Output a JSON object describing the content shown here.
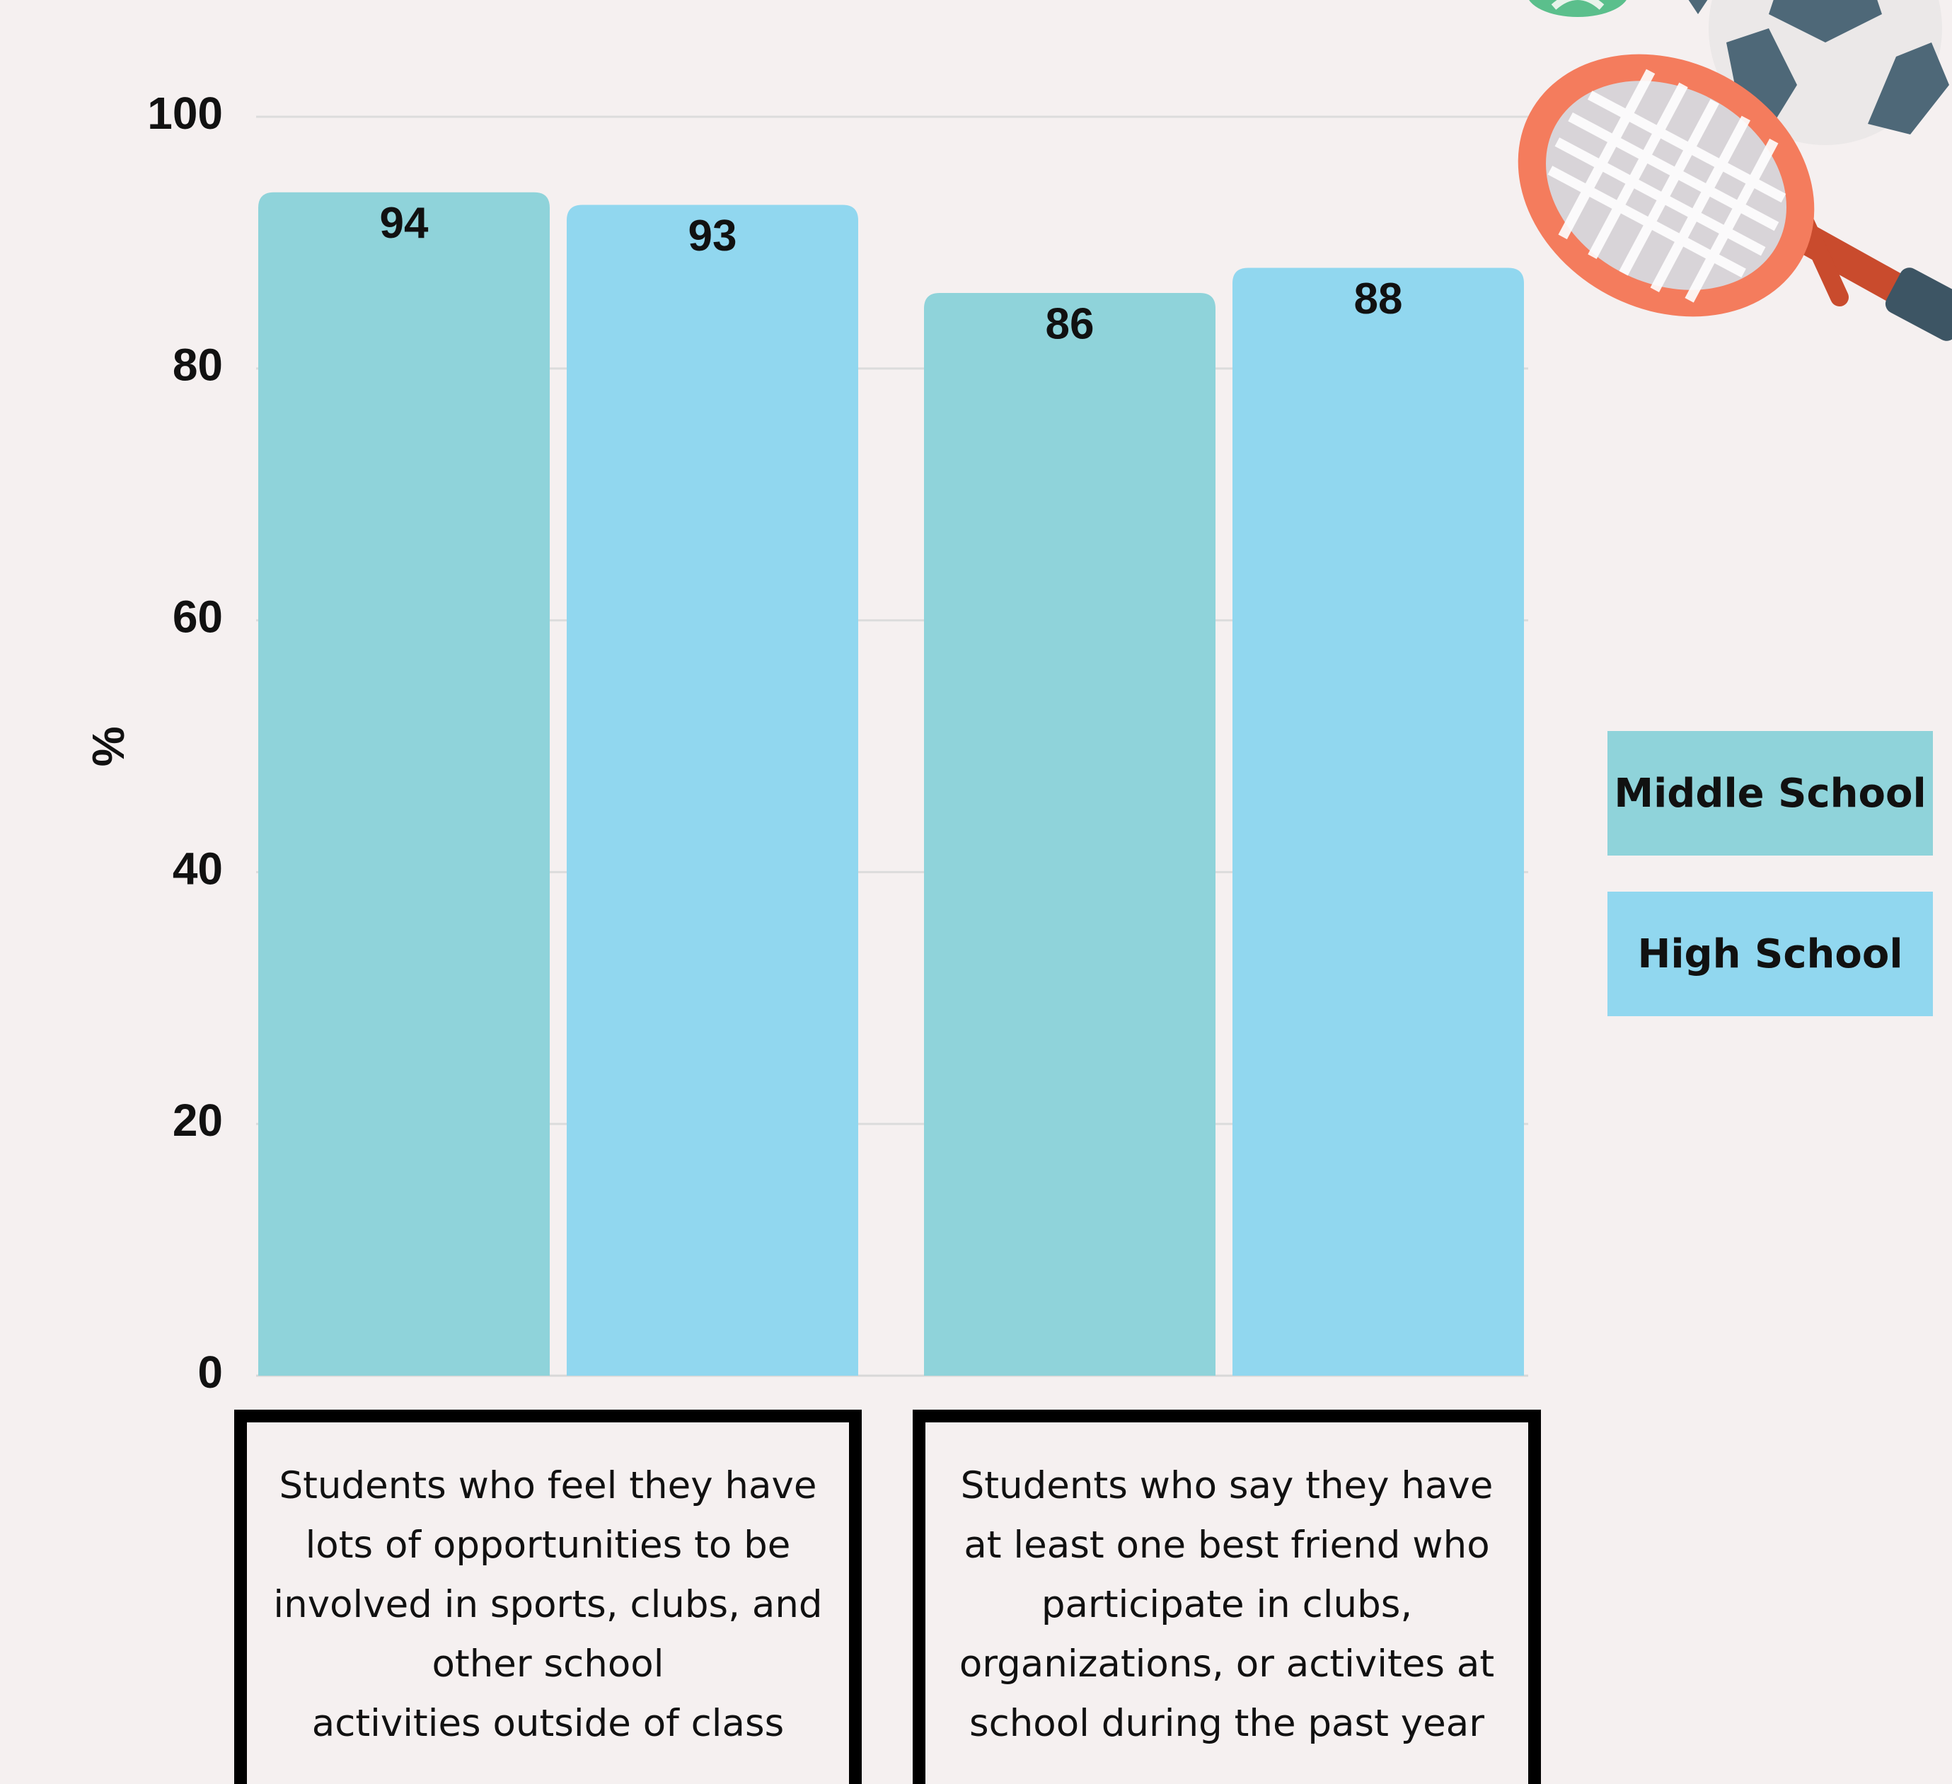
{
  "chart_data": {
    "type": "bar",
    "categories": [
      "Students who feel they have\n lots of opportunities to be\ninvolved in sports, clubs, and\nother school\n activities outside of class",
      "Students who say they have\nat least one best friend who\nparticipate in clubs,\norganizations, or activites at\nschool during the past year"
    ],
    "series": [
      {
        "name": "Middle School",
        "values": [
          94,
          86
        ],
        "color": "#8fd3da"
      },
      {
        "name": "High School",
        "values": [
          93,
          88
        ],
        "color": "#91d7ef"
      }
    ],
    "ylabel": "%",
    "ylim": [
      0,
      100
    ],
    "yticks": [
      0,
      20,
      40,
      60,
      80,
      100
    ],
    "grid": true,
    "legend_position": "right"
  },
  "decoration": {
    "icons": [
      "tennis-racket-icon",
      "soccer-ball-icon",
      "tennis-ball-icon"
    ]
  }
}
